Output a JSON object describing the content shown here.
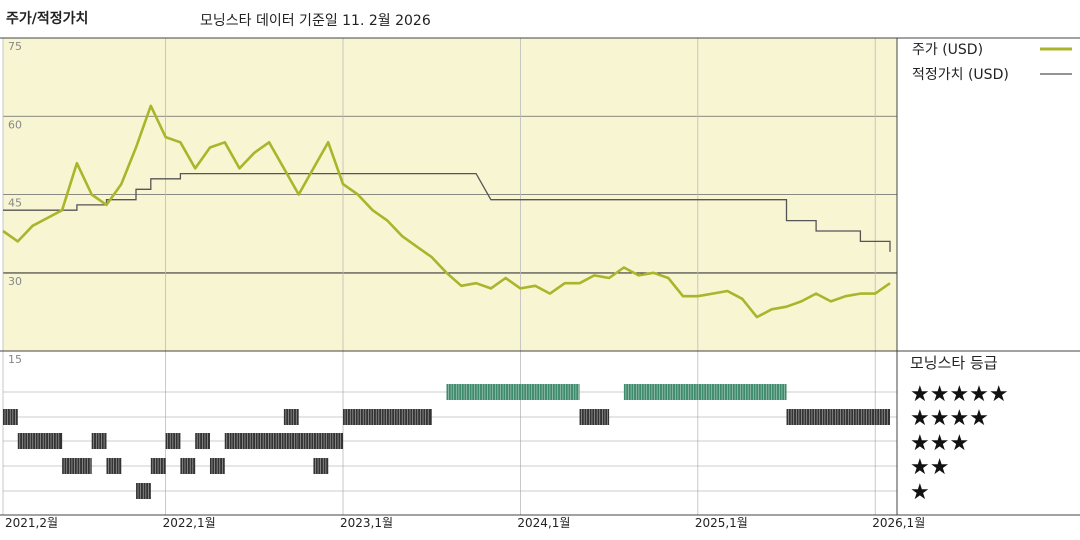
{
  "header": {
    "title": "주가/적정가치",
    "date_note": "모닝스타 데이터 기준일 11. 2월 2026"
  },
  "legend": {
    "price_label": "주가 (USD)",
    "fair_label": "적정가치 (USD)",
    "rating_title": "모닝스타 등급",
    "stars": [
      "★★★★★",
      "★★★★",
      "★★★",
      "★★",
      "★"
    ]
  },
  "colors": {
    "price": "#a9b52b",
    "fair": "#555555",
    "panel_bg": "#f8f5d2",
    "five_star": "#3e8a6c",
    "other_star": "#333333"
  },
  "chart_data": {
    "type": "line",
    "y_ticks": [
      "75",
      "60",
      "45",
      "30",
      "15"
    ],
    "ylim": [
      15,
      75
    ],
    "x_ticks": [
      "2021,2월",
      "2022,1월",
      "2023,1월",
      "2024,1월",
      "2025,1월",
      "2026,1월"
    ],
    "x_tick_dates": [
      "2021-02",
      "2022-01",
      "2023-01",
      "2024-01",
      "2025-01",
      "2026-01"
    ],
    "x_range": [
      "2021-02",
      "2026-02"
    ],
    "series": [
      {
        "name": "주가 (USD)",
        "points": [
          [
            "2021-02",
            38
          ],
          [
            "2021-03",
            36
          ],
          [
            "2021-04",
            39
          ],
          [
            "2021-05",
            40.5
          ],
          [
            "2021-06",
            42
          ],
          [
            "2021-07",
            51
          ],
          [
            "2021-08",
            45
          ],
          [
            "2021-09",
            43
          ],
          [
            "2021-10",
            47
          ],
          [
            "2021-11",
            54
          ],
          [
            "2021-12",
            62
          ],
          [
            "2022-01",
            56
          ],
          [
            "2022-02",
            55
          ],
          [
            "2022-03",
            50
          ],
          [
            "2022-04",
            54
          ],
          [
            "2022-05",
            55
          ],
          [
            "2022-06",
            50
          ],
          [
            "2022-07",
            53
          ],
          [
            "2022-08",
            55
          ],
          [
            "2022-09",
            50
          ],
          [
            "2022-10",
            45
          ],
          [
            "2022-11",
            50
          ],
          [
            "2022-12",
            55
          ],
          [
            "2023-01",
            47
          ],
          [
            "2023-02",
            45
          ],
          [
            "2023-03",
            42
          ],
          [
            "2023-04",
            40
          ],
          [
            "2023-05",
            37
          ],
          [
            "2023-06",
            35
          ],
          [
            "2023-07",
            33
          ],
          [
            "2023-08",
            30
          ],
          [
            "2023-09",
            27.5
          ],
          [
            "2023-10",
            28
          ],
          [
            "2023-11",
            27
          ],
          [
            "2023-12",
            29
          ],
          [
            "2024-01",
            27
          ],
          [
            "2024-02",
            27.5
          ],
          [
            "2024-03",
            26
          ],
          [
            "2024-04",
            28
          ],
          [
            "2024-05",
            28
          ],
          [
            "2024-06",
            29.5
          ],
          [
            "2024-07",
            29
          ],
          [
            "2024-08",
            31
          ],
          [
            "2024-09",
            29.5
          ],
          [
            "2024-10",
            30
          ],
          [
            "2024-11",
            29
          ],
          [
            "2024-12",
            25.5
          ],
          [
            "2025-01",
            25.5
          ],
          [
            "2025-02",
            26
          ],
          [
            "2025-03",
            26.5
          ],
          [
            "2025-04",
            25
          ],
          [
            "2025-05",
            21.5
          ],
          [
            "2025-06",
            23
          ],
          [
            "2025-07",
            23.5
          ],
          [
            "2025-08",
            24.5
          ],
          [
            "2025-09",
            26
          ],
          [
            "2025-10",
            24.5
          ],
          [
            "2025-11",
            25.5
          ],
          [
            "2025-12",
            26
          ],
          [
            "2026-01",
            26
          ],
          [
            "2026-02",
            28
          ]
        ]
      },
      {
        "name": "적정가치 (USD)",
        "points": [
          [
            "2021-02",
            42
          ],
          [
            "2021-07",
            42
          ],
          [
            "2021-07",
            43
          ],
          [
            "2021-09",
            43
          ],
          [
            "2021-09",
            44
          ],
          [
            "2021-11",
            44
          ],
          [
            "2021-11",
            46
          ],
          [
            "2021-12",
            46
          ],
          [
            "2021-12",
            48
          ],
          [
            "2022-02",
            48
          ],
          [
            "2022-02",
            49
          ],
          [
            "2023-10",
            49
          ],
          [
            "2023-11",
            44
          ],
          [
            "2025-07",
            44
          ],
          [
            "2025-07",
            40
          ],
          [
            "2025-09",
            40
          ],
          [
            "2025-09",
            38
          ],
          [
            "2025-12",
            38
          ],
          [
            "2025-12",
            36
          ],
          [
            "2026-02",
            36
          ],
          [
            "2026-02",
            34
          ]
        ]
      }
    ],
    "rating_segments": [
      {
        "stars": 4,
        "start": "2021-02",
        "end": "2021-03"
      },
      {
        "stars": 3,
        "start": "2021-03",
        "end": "2021-06"
      },
      {
        "stars": 2,
        "start": "2021-06",
        "end": "2021-08"
      },
      {
        "stars": 3,
        "start": "2021-08",
        "end": "2021-09"
      },
      {
        "stars": 2,
        "start": "2021-09",
        "end": "2021-10"
      },
      {
        "stars": 1,
        "start": "2021-11",
        "end": "2021-12"
      },
      {
        "stars": 2,
        "start": "2021-12",
        "end": "2022-01"
      },
      {
        "stars": 3,
        "start": "2022-01",
        "end": "2022-02"
      },
      {
        "stars": 2,
        "start": "2022-02",
        "end": "2022-03"
      },
      {
        "stars": 3,
        "start": "2022-03",
        "end": "2022-04"
      },
      {
        "stars": 2,
        "start": "2022-04",
        "end": "2022-05"
      },
      {
        "stars": 3,
        "start": "2022-05",
        "end": "2022-10"
      },
      {
        "stars": 4,
        "start": "2022-09",
        "end": "2022-10"
      },
      {
        "stars": 3,
        "start": "2022-10",
        "end": "2022-12"
      },
      {
        "stars": 2,
        "start": "2022-11",
        "end": "2022-12"
      },
      {
        "stars": 3,
        "start": "2022-12",
        "end": "2023-01"
      },
      {
        "stars": 4,
        "start": "2023-01",
        "end": "2023-07"
      },
      {
        "stars": 5,
        "start": "2023-08",
        "end": "2024-05"
      },
      {
        "stars": 4,
        "start": "2024-05",
        "end": "2024-07"
      },
      {
        "stars": 5,
        "start": "2024-08",
        "end": "2025-07"
      },
      {
        "stars": 4,
        "start": "2025-07",
        "end": "2026-02"
      }
    ]
  }
}
